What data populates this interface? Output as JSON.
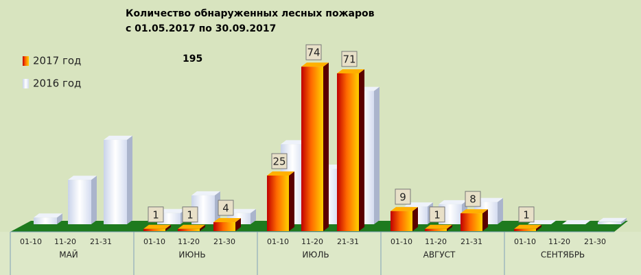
{
  "chart_data": {
    "type": "bar3d",
    "title": "Количество обнаруженных лесных пожаров",
    "subtitle": "с 01.05.2017  по  30.09.2017",
    "annotation": "195",
    "categories": [
      "01-10",
      "11-20",
      "21-31",
      "01-10",
      "11-20",
      "21-30",
      "01-10",
      "11-20",
      "21-31",
      "01-10",
      "11-20",
      "21-31",
      "01-10",
      "11-20",
      "21-30"
    ],
    "groups": [
      "МАЙ",
      "ИЮНЬ",
      "ИЮЛЬ",
      "АВГУСТ",
      "СЕНТЯБРЬ"
    ],
    "series": [
      {
        "name": "2017 год",
        "color": "#f07800",
        "values": [
          null,
          null,
          null,
          1,
          1,
          4,
          25,
          74,
          71,
          9,
          1,
          8,
          1,
          null,
          null
        ]
      },
      {
        "name": "2016 год",
        "color": "#dde4f4",
        "values": [
          3,
          20,
          38,
          5,
          13,
          5,
          36,
          25,
          60,
          8,
          9,
          10,
          0,
          0,
          1
        ]
      }
    ]
  }
}
